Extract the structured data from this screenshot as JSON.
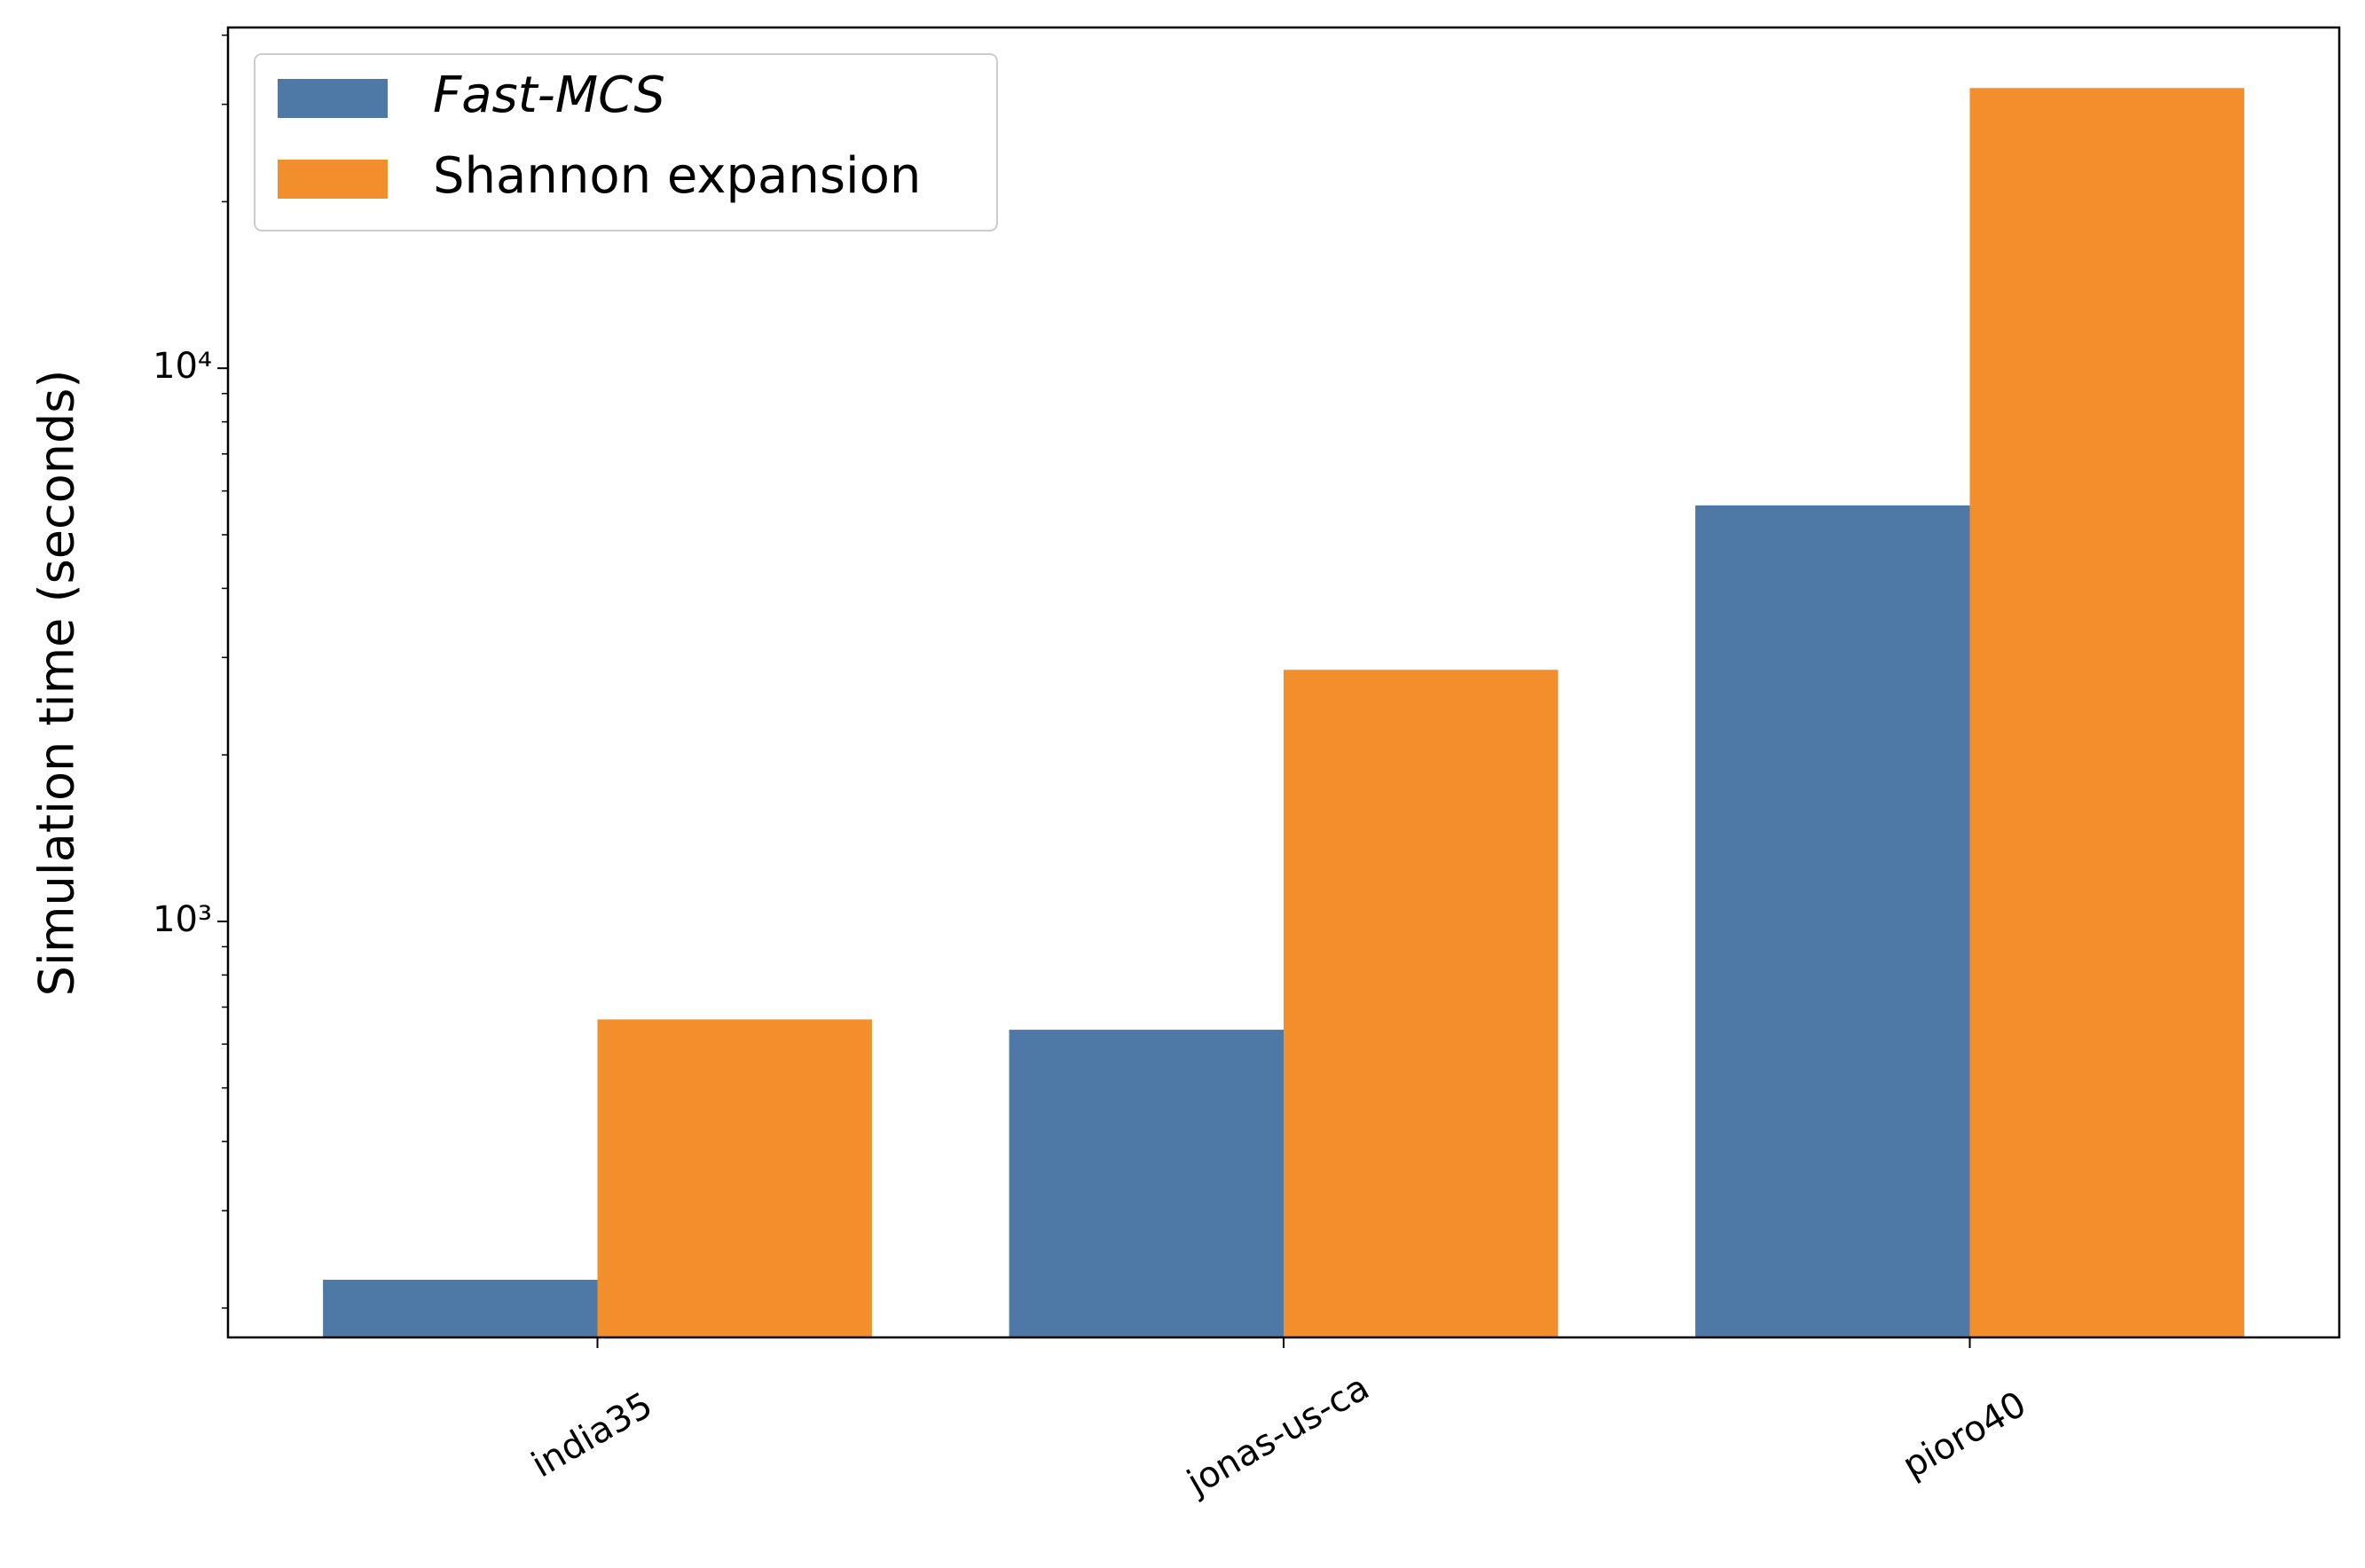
{
  "chart_data": {
    "type": "bar",
    "y_label": "Simulation time (seconds)",
    "categories": [
      "india35",
      "jonas-us-ca",
      "pioro40"
    ],
    "series": [
      {
        "name": "Fast-MCS",
        "color": "#4e78a6",
        "values": [
          225,
          637,
          5650
        ]
      },
      {
        "name": "Shannon expansion",
        "color": "#f28e2c",
        "values": [
          665,
          2850,
          32100
        ]
      }
    ],
    "log_y": true,
    "ylim": [
      177,
      41300
    ],
    "yticks": [
      {
        "value": 1000,
        "label": "10³"
      },
      {
        "value": 10000,
        "label": "10⁴"
      }
    ],
    "yminorticks": [
      200,
      300,
      400,
      500,
      600,
      700,
      800,
      900,
      2000,
      3000,
      4000,
      5000,
      6000,
      7000,
      8000,
      9000,
      20000,
      30000,
      40000
    ],
    "legend": "upper left"
  }
}
